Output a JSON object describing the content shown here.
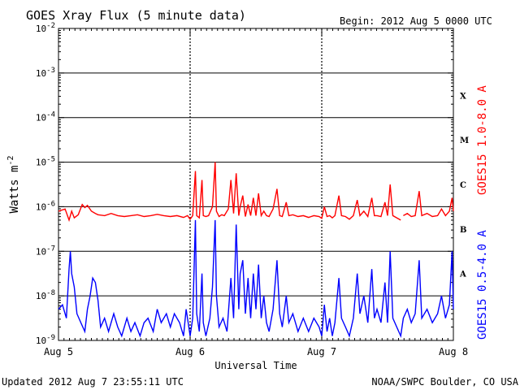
{
  "header": {
    "title": "GOES Xray Flux (5 minute data)",
    "begin": "Begin:  2012 Aug 5 0000 UTC"
  },
  "footer": {
    "updated": "Updated 2012 Aug  7 23:55:11 UTC",
    "credit": "NOAA/SWPC Boulder, CO USA"
  },
  "chart_data": {
    "type": "line",
    "title": "GOES Xray Flux (5 minute data)",
    "xlabel": "Universal Time",
    "ylabel": "Watts m",
    "ylabel_sup": "-2",
    "yscale": "log",
    "ylim": [
      1e-09,
      0.01
    ],
    "xlim": [
      0,
      3
    ],
    "x_ticks": [
      {
        "x": 0,
        "label": "Aug 5"
      },
      {
        "x": 1,
        "label": "Aug 6"
      },
      {
        "x": 2,
        "label": "Aug 7"
      },
      {
        "x": 3,
        "label": "Aug 8"
      }
    ],
    "y_ticks": [
      {
        "exp": -2,
        "base": "10",
        "sup": "-2"
      },
      {
        "exp": -3,
        "base": "10",
        "sup": "-3"
      },
      {
        "exp": -4,
        "base": "10",
        "sup": "-4"
      },
      {
        "exp": -5,
        "base": "10",
        "sup": "-5"
      },
      {
        "exp": -6,
        "base": "10",
        "sup": "-6"
      },
      {
        "exp": -7,
        "base": "10",
        "sup": "-7"
      },
      {
        "exp": -8,
        "base": "10",
        "sup": "-8"
      },
      {
        "exp": -9,
        "base": "10",
        "sup": "-9"
      }
    ],
    "flare_classes": [
      {
        "label": "X",
        "exp": -3.5
      },
      {
        "label": "M",
        "exp": -4.5
      },
      {
        "label": "C",
        "exp": -5.5
      },
      {
        "label": "B",
        "exp": -6.5
      },
      {
        "label": "A",
        "exp": -7.5
      }
    ],
    "grid": true,
    "series": [
      {
        "name": "GOES15 1.0-8.0 A",
        "color": "#ff0000",
        "points": [
          [
            0.0,
            -6.1
          ],
          [
            0.05,
            -6.05
          ],
          [
            0.08,
            -6.3
          ],
          [
            0.1,
            -6.1
          ],
          [
            0.12,
            -6.25
          ],
          [
            0.15,
            -6.18
          ],
          [
            0.18,
            -5.95
          ],
          [
            0.2,
            -6.02
          ],
          [
            0.22,
            -5.97
          ],
          [
            0.25,
            -6.1
          ],
          [
            0.28,
            -6.15
          ],
          [
            0.3,
            -6.18
          ],
          [
            0.35,
            -6.2
          ],
          [
            0.4,
            -6.15
          ],
          [
            0.45,
            -6.2
          ],
          [
            0.5,
            -6.22
          ],
          [
            0.55,
            -6.2
          ],
          [
            0.6,
            -6.18
          ],
          [
            0.65,
            -6.22
          ],
          [
            0.7,
            -6.2
          ],
          [
            0.75,
            -6.17
          ],
          [
            0.8,
            -6.2
          ],
          [
            0.85,
            -6.22
          ],
          [
            0.9,
            -6.2
          ],
          [
            0.95,
            -6.24
          ],
          [
            0.98,
            -6.2
          ],
          [
            1.0,
            -6.28
          ],
          [
            1.02,
            -6.2
          ],
          [
            1.04,
            -5.2
          ],
          [
            1.05,
            -6.2
          ],
          [
            1.07,
            -6.25
          ],
          [
            1.09,
            -5.4
          ],
          [
            1.1,
            -6.2
          ],
          [
            1.12,
            -6.22
          ],
          [
            1.14,
            -6.2
          ],
          [
            1.17,
            -6.0
          ],
          [
            1.19,
            -5.0
          ],
          [
            1.2,
            -6.1
          ],
          [
            1.22,
            -6.22
          ],
          [
            1.24,
            -6.18
          ],
          [
            1.26,
            -6.2
          ],
          [
            1.29,
            -6.05
          ],
          [
            1.31,
            -5.4
          ],
          [
            1.33,
            -6.15
          ],
          [
            1.35,
            -5.25
          ],
          [
            1.37,
            -6.2
          ],
          [
            1.38,
            -6.0
          ],
          [
            1.4,
            -5.75
          ],
          [
            1.42,
            -6.22
          ],
          [
            1.44,
            -5.95
          ],
          [
            1.46,
            -6.2
          ],
          [
            1.48,
            -5.8
          ],
          [
            1.5,
            -6.2
          ],
          [
            1.52,
            -5.7
          ],
          [
            1.54,
            -6.2
          ],
          [
            1.56,
            -6.1
          ],
          [
            1.58,
            -6.2
          ],
          [
            1.6,
            -6.22
          ],
          [
            1.63,
            -6.05
          ],
          [
            1.66,
            -5.6
          ],
          [
            1.68,
            -6.2
          ],
          [
            1.7,
            -6.22
          ],
          [
            1.73,
            -5.9
          ],
          [
            1.75,
            -6.2
          ],
          [
            1.78,
            -6.18
          ],
          [
            1.82,
            -6.22
          ],
          [
            1.86,
            -6.2
          ],
          [
            1.9,
            -6.24
          ],
          [
            1.94,
            -6.2
          ],
          [
            1.98,
            -6.22
          ],
          [
            2.0,
            -6.26
          ],
          [
            2.02,
            -6.0
          ],
          [
            2.04,
            -6.22
          ],
          [
            2.06,
            -6.2
          ],
          [
            2.08,
            -6.25
          ],
          [
            2.1,
            -6.2
          ],
          [
            2.13,
            -5.75
          ],
          [
            2.15,
            -6.2
          ],
          [
            2.18,
            -6.22
          ],
          [
            2.21,
            -6.28
          ],
          [
            2.24,
            -6.2
          ],
          [
            2.27,
            -5.85
          ],
          [
            2.29,
            -6.2
          ],
          [
            2.32,
            -6.1
          ],
          [
            2.35,
            -6.22
          ],
          [
            2.38,
            -5.8
          ],
          [
            2.4,
            -6.2
          ],
          [
            2.42,
            -6.2
          ],
          [
            2.45,
            -6.22
          ],
          [
            2.48,
            -5.9
          ],
          [
            2.5,
            -6.2
          ],
          [
            2.52,
            -5.5
          ],
          [
            2.54,
            -6.2
          ],
          [
            2.57,
            -6.25
          ],
          [
            2.6,
            -6.3
          ]
        ],
        "points_b": [
          [
            2.62,
            -6.2
          ],
          [
            2.65,
            -6.15
          ],
          [
            2.68,
            -6.22
          ],
          [
            2.71,
            -6.2
          ],
          [
            2.74,
            -5.65
          ],
          [
            2.76,
            -6.2
          ],
          [
            2.8,
            -6.15
          ],
          [
            2.84,
            -6.22
          ],
          [
            2.88,
            -6.2
          ],
          [
            2.91,
            -6.05
          ],
          [
            2.94,
            -6.2
          ],
          [
            2.97,
            -6.1
          ],
          [
            2.99,
            -5.8
          ],
          [
            3.0,
            -6.1
          ]
        ]
      },
      {
        "name": "GOES15 0.5-4.0 A",
        "color": "#0000ff",
        "points": [
          [
            0.0,
            -8.3
          ],
          [
            0.03,
            -8.2
          ],
          [
            0.06,
            -8.5
          ],
          [
            0.08,
            -7.4
          ],
          [
            0.09,
            -7.0
          ],
          [
            0.1,
            -7.5
          ],
          [
            0.12,
            -7.8
          ],
          [
            0.14,
            -8.4
          ],
          [
            0.17,
            -8.6
          ],
          [
            0.2,
            -8.8
          ],
          [
            0.22,
            -8.3
          ],
          [
            0.24,
            -8.0
          ],
          [
            0.26,
            -7.6
          ],
          [
            0.28,
            -7.7
          ],
          [
            0.3,
            -8.1
          ],
          [
            0.32,
            -8.7
          ],
          [
            0.35,
            -8.5
          ],
          [
            0.38,
            -8.8
          ],
          [
            0.42,
            -8.4
          ],
          [
            0.45,
            -8.7
          ],
          [
            0.48,
            -8.9
          ],
          [
            0.52,
            -8.5
          ],
          [
            0.55,
            -8.8
          ],
          [
            0.58,
            -8.6
          ],
          [
            0.62,
            -8.9
          ],
          [
            0.65,
            -8.6
          ],
          [
            0.68,
            -8.5
          ],
          [
            0.72,
            -8.8
          ],
          [
            0.75,
            -8.3
          ],
          [
            0.78,
            -8.6
          ],
          [
            0.82,
            -8.4
          ],
          [
            0.85,
            -8.7
          ],
          [
            0.88,
            -8.4
          ],
          [
            0.92,
            -8.6
          ],
          [
            0.95,
            -8.9
          ],
          [
            0.97,
            -8.3
          ],
          [
            0.99,
            -8.7
          ],
          [
            1.0,
            -8.9
          ],
          [
            1.02,
            -8.5
          ],
          [
            1.04,
            -6.3
          ],
          [
            1.05,
            -8.4
          ],
          [
            1.07,
            -8.8
          ],
          [
            1.09,
            -7.5
          ],
          [
            1.1,
            -8.6
          ],
          [
            1.12,
            -8.9
          ],
          [
            1.15,
            -8.5
          ],
          [
            1.17,
            -7.8
          ],
          [
            1.19,
            -6.3
          ],
          [
            1.2,
            -8.0
          ],
          [
            1.22,
            -8.7
          ],
          [
            1.25,
            -8.5
          ],
          [
            1.28,
            -8.8
          ],
          [
            1.31,
            -7.6
          ],
          [
            1.33,
            -8.5
          ],
          [
            1.35,
            -6.4
          ],
          [
            1.37,
            -8.3
          ],
          [
            1.38,
            -7.5
          ],
          [
            1.4,
            -7.2
          ],
          [
            1.42,
            -8.4
          ],
          [
            1.44,
            -7.6
          ],
          [
            1.46,
            -8.5
          ],
          [
            1.48,
            -7.5
          ],
          [
            1.5,
            -8.3
          ],
          [
            1.52,
            -7.3
          ],
          [
            1.54,
            -8.5
          ],
          [
            1.56,
            -8.0
          ],
          [
            1.58,
            -8.6
          ],
          [
            1.6,
            -8.8
          ],
          [
            1.63,
            -8.3
          ],
          [
            1.66,
            -7.2
          ],
          [
            1.68,
            -8.4
          ],
          [
            1.7,
            -8.7
          ],
          [
            1.73,
            -8.0
          ],
          [
            1.75,
            -8.6
          ],
          [
            1.78,
            -8.4
          ],
          [
            1.82,
            -8.8
          ],
          [
            1.86,
            -8.5
          ],
          [
            1.9,
            -8.8
          ],
          [
            1.94,
            -8.5
          ],
          [
            1.98,
            -8.7
          ],
          [
            2.0,
            -8.9
          ],
          [
            2.02,
            -8.2
          ],
          [
            2.04,
            -8.8
          ],
          [
            2.06,
            -8.5
          ],
          [
            2.08,
            -8.9
          ],
          [
            2.1,
            -8.6
          ],
          [
            2.13,
            -7.6
          ],
          [
            2.15,
            -8.5
          ],
          [
            2.18,
            -8.7
          ],
          [
            2.21,
            -8.9
          ],
          [
            2.24,
            -8.5
          ],
          [
            2.27,
            -7.5
          ],
          [
            2.29,
            -8.4
          ],
          [
            2.32,
            -8.0
          ],
          [
            2.35,
            -8.6
          ],
          [
            2.38,
            -7.4
          ],
          [
            2.4,
            -8.5
          ],
          [
            2.42,
            -8.3
          ],
          [
            2.45,
            -8.6
          ],
          [
            2.48,
            -7.7
          ],
          [
            2.5,
            -8.6
          ],
          [
            2.52,
            -7.0
          ],
          [
            2.54,
            -8.5
          ],
          [
            2.57,
            -8.7
          ],
          [
            2.6,
            -8.9
          ],
          [
            2.62,
            -8.5
          ],
          [
            2.65,
            -8.3
          ],
          [
            2.68,
            -8.6
          ],
          [
            2.71,
            -8.4
          ],
          [
            2.74,
            -7.2
          ],
          [
            2.76,
            -8.5
          ],
          [
            2.8,
            -8.3
          ],
          [
            2.84,
            -8.6
          ],
          [
            2.88,
            -8.4
          ],
          [
            2.91,
            -8.0
          ],
          [
            2.94,
            -8.5
          ],
          [
            2.97,
            -8.2
          ],
          [
            2.99,
            -7.0
          ],
          [
            3.0,
            -8.3
          ]
        ]
      }
    ]
  }
}
